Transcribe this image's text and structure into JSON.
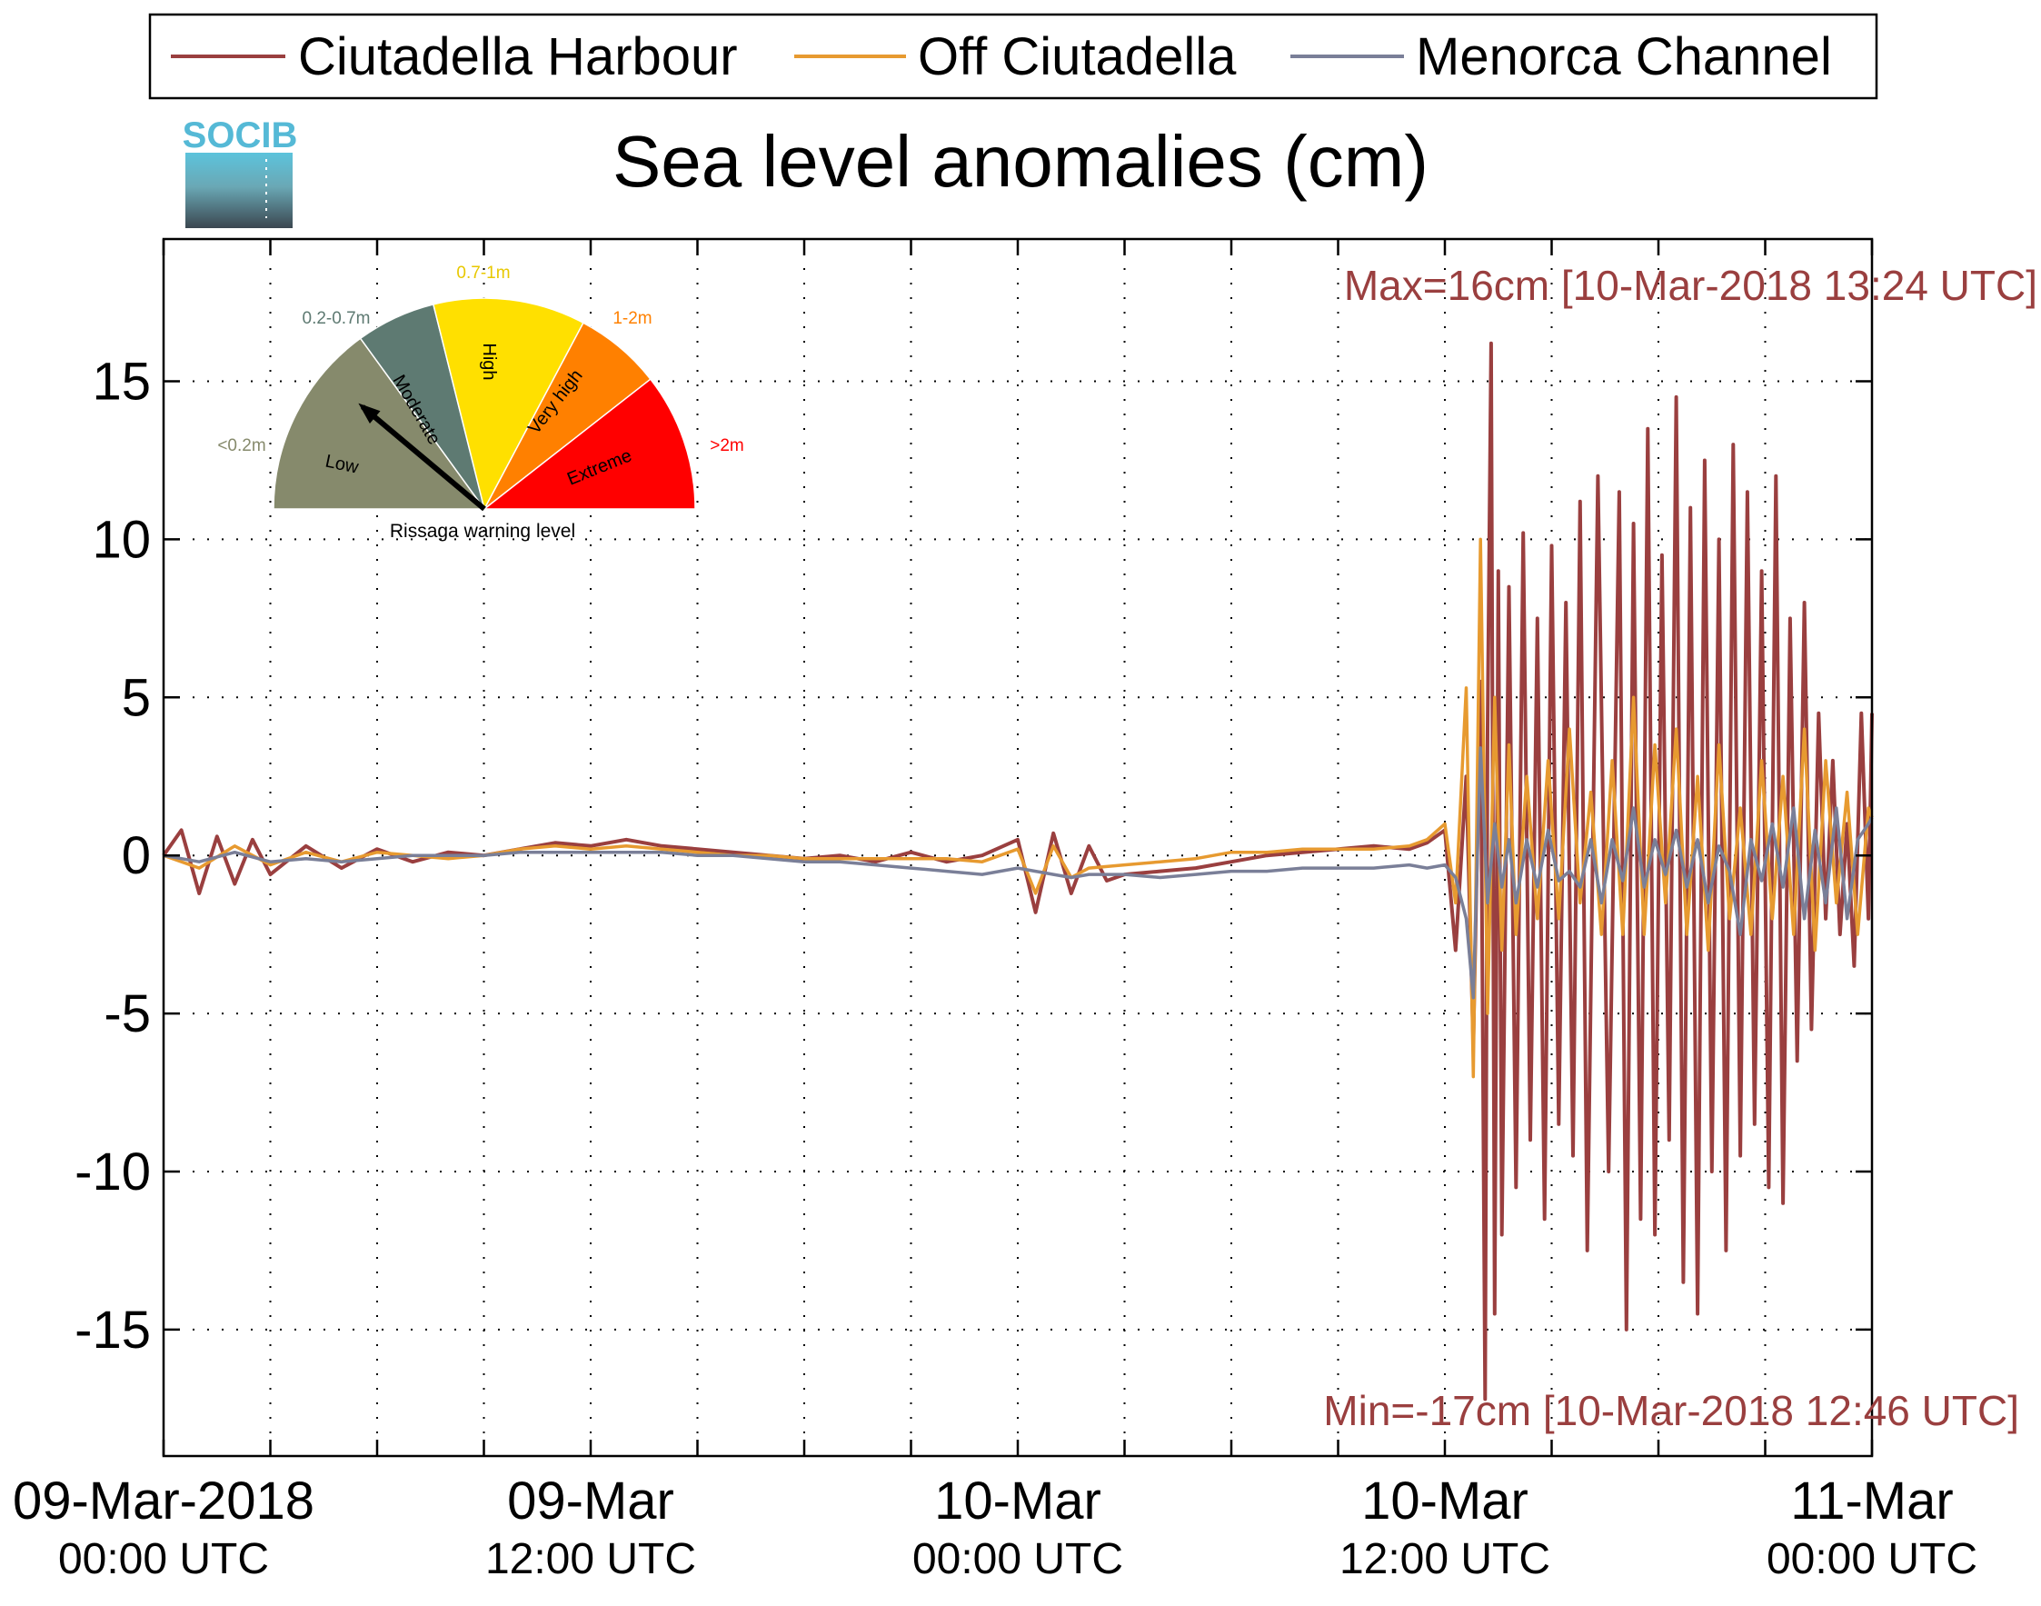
{
  "chart_data": {
    "type": "line",
    "title": "Sea level anomalies (cm)",
    "logo_text": "SOCIB",
    "xlabel": "",
    "ylabel": "",
    "xlim": [
      "2018-03-09 00:00 UTC",
      "2018-03-11 00:00 UTC"
    ],
    "ylim": [
      -19,
      19.5
    ],
    "y_ticks": [
      -15,
      -10,
      -5,
      0,
      5,
      10,
      15
    ],
    "y_tick_labels": [
      "-15",
      "-10",
      "-5",
      "0",
      "5",
      "10",
      "15"
    ],
    "x_ticks": [
      {
        "date": "09-Mar-2018",
        "time": "00:00 UTC",
        "hours": 0
      },
      {
        "date": "09-Mar",
        "time": "12:00 UTC",
        "hours": 12
      },
      {
        "date": "10-Mar",
        "time": "00:00 UTC",
        "hours": 24
      },
      {
        "date": "10-Mar",
        "time": "12:00 UTC",
        "hours": 36
      },
      {
        "date": "11-Mar",
        "time": "00:00 UTC",
        "hours": 48
      }
    ],
    "x_minor_tick_hours": [
      3,
      6,
      9,
      15,
      18,
      21,
      27,
      30,
      33,
      39,
      42,
      45
    ],
    "grid": true,
    "legend_position": "top",
    "annotations": {
      "max": "Max=16cm [10-Mar-2018 13:24 UTC]",
      "min": "Min=-17cm [10-Mar-2018 12:46 UTC]"
    },
    "series": [
      {
        "name": "Ciutadella Harbour",
        "color": "#9a3f3f",
        "x_hours": [
          0,
          0.5,
          1,
          1.5,
          2,
          2.5,
          3,
          4,
          5,
          6,
          7,
          8,
          9,
          10,
          11,
          12,
          13,
          14,
          15,
          16,
          17,
          18,
          19,
          20,
          21,
          22,
          23,
          24,
          24.5,
          25,
          25.5,
          26,
          26.5,
          27,
          28,
          29,
          30,
          31,
          32,
          33,
          34,
          35,
          35.5,
          36,
          36.3,
          36.6,
          36.8,
          37.0,
          37.13,
          37.2,
          37.3,
          37.4,
          37.5,
          37.6,
          37.8,
          38.0,
          38.2,
          38.4,
          38.6,
          38.8,
          39.0,
          39.2,
          39.4,
          39.6,
          39.8,
          40.0,
          40.3,
          40.6,
          40.9,
          41.1,
          41.3,
          41.5,
          41.7,
          41.9,
          42.1,
          42.3,
          42.5,
          42.7,
          42.9,
          43.1,
          43.3,
          43.5,
          43.7,
          43.9,
          44.1,
          44.3,
          44.5,
          44.7,
          44.9,
          45.1,
          45.3,
          45.5,
          45.7,
          45.9,
          46.1,
          46.3,
          46.5,
          46.7,
          46.9,
          47.1,
          47.3,
          47.5,
          47.7,
          47.9,
          48.0
        ],
        "values": [
          0,
          0.8,
          -1.2,
          0.6,
          -0.9,
          0.5,
          -0.6,
          0.3,
          -0.4,
          0.2,
          -0.2,
          0.1,
          0,
          0.2,
          0.4,
          0.3,
          0.5,
          0.3,
          0.2,
          0.1,
          0,
          -0.1,
          0,
          -0.2,
          0.1,
          -0.2,
          0,
          0.5,
          -1.8,
          0.7,
          -1.2,
          0.3,
          -0.8,
          -0.6,
          -0.5,
          -0.4,
          -0.2,
          0,
          0.1,
          0.2,
          0.3,
          0.2,
          0.4,
          0.8,
          -3.0,
          2.5,
          -6.0,
          5.5,
          -17.2,
          4.0,
          16.2,
          -14.5,
          9.0,
          -12.0,
          8.5,
          -10.5,
          10.2,
          -9.0,
          7.5,
          -11.5,
          9.8,
          -8.5,
          8.0,
          -9.5,
          11.2,
          -12.5,
          12.0,
          -10.0,
          11.5,
          -15.0,
          10.5,
          -11.5,
          13.5,
          -12.0,
          9.5,
          -9.0,
          14.5,
          -13.5,
          11.0,
          -14.5,
          12.5,
          -10.0,
          10.0,
          -12.5,
          13.0,
          -9.5,
          11.5,
          -8.5,
          9.0,
          -10.5,
          12.0,
          -11.0,
          7.5,
          -6.5,
          8.0,
          -5.5,
          4.5,
          -2.0,
          3.0,
          -2.5,
          1.0,
          -3.5,
          4.5,
          -2.0,
          4.5
        ]
      },
      {
        "name": "Off Ciutadella",
        "color": "#e79a30",
        "x_hours": [
          0,
          1,
          2,
          3,
          4,
          5,
          6,
          7,
          8,
          9,
          10,
          11,
          12,
          13,
          14,
          15,
          16,
          17,
          18,
          19,
          20,
          21,
          22,
          23,
          24,
          24.5,
          25,
          25.5,
          26,
          27,
          28,
          29,
          30,
          31,
          32,
          33,
          34,
          35,
          35.5,
          36,
          36.3,
          36.6,
          36.8,
          37.0,
          37.2,
          37.4,
          37.6,
          37.8,
          38.0,
          38.3,
          38.6,
          38.9,
          39.2,
          39.5,
          39.8,
          40.1,
          40.4,
          40.7,
          41.0,
          41.3,
          41.6,
          41.9,
          42.2,
          42.5,
          42.8,
          43.1,
          43.4,
          43.7,
          44.0,
          44.3,
          44.6,
          44.9,
          45.2,
          45.5,
          45.8,
          46.1,
          46.4,
          46.7,
          47.0,
          47.3,
          47.6,
          47.9,
          48.0
        ],
        "values": [
          0,
          -0.4,
          0.3,
          -0.3,
          0.1,
          -0.2,
          0.1,
          0,
          -0.1,
          0,
          0.2,
          0.3,
          0.2,
          0.3,
          0.2,
          0.1,
          0,
          0,
          -0.1,
          -0.1,
          -0.1,
          -0.1,
          -0.1,
          -0.2,
          0.2,
          -1.2,
          0.3,
          -0.7,
          -0.4,
          -0.3,
          -0.2,
          -0.1,
          0.1,
          0.1,
          0.2,
          0.2,
          0.2,
          0.3,
          0.5,
          1.0,
          -1.5,
          5.3,
          -7.0,
          10.0,
          -5.0,
          5.0,
          -3.0,
          3.5,
          -2.5,
          2.5,
          -2.0,
          3.0,
          -2.0,
          4.0,
          -1.5,
          2.0,
          -2.5,
          3.0,
          -2.5,
          5.0,
          -2.5,
          3.5,
          -1.5,
          4.0,
          -2.5,
          2.5,
          -3.0,
          3.5,
          -2.0,
          1.5,
          -2.5,
          3.0,
          -2.0,
          2.5,
          -2.5,
          4.0,
          -3.0,
          3.0,
          -1.5,
          2.0,
          -2.5,
          1.5,
          1.2
        ]
      },
      {
        "name": "Menorca Channel",
        "color": "#7a7f98",
        "x_hours": [
          0,
          1,
          2,
          3,
          4,
          5,
          6,
          7,
          8,
          9,
          10,
          11,
          12,
          13,
          14,
          15,
          16,
          17,
          18,
          19,
          20,
          21,
          22,
          23,
          24,
          24.5,
          25,
          25.5,
          26,
          27,
          28,
          29,
          30,
          31,
          32,
          33,
          34,
          35,
          35.5,
          36,
          36.3,
          36.6,
          36.8,
          37.0,
          37.2,
          37.4,
          37.6,
          37.8,
          38.0,
          38.3,
          38.6,
          38.9,
          39.2,
          39.5,
          39.8,
          40.1,
          40.4,
          40.7,
          41.0,
          41.3,
          41.6,
          41.9,
          42.2,
          42.5,
          42.8,
          43.1,
          43.4,
          43.7,
          44.0,
          44.3,
          44.6,
          44.9,
          45.2,
          45.5,
          45.8,
          46.1,
          46.4,
          46.7,
          47.0,
          47.3,
          47.6,
          47.9,
          48.0
        ],
        "values": [
          0,
          -0.2,
          0.1,
          -0.2,
          -0.1,
          -0.2,
          -0.1,
          0,
          0,
          0,
          0.1,
          0.1,
          0.1,
          0.1,
          0.1,
          0,
          0,
          -0.1,
          -0.2,
          -0.2,
          -0.3,
          -0.4,
          -0.5,
          -0.6,
          -0.4,
          -0.5,
          -0.6,
          -0.7,
          -0.6,
          -0.6,
          -0.7,
          -0.6,
          -0.5,
          -0.5,
          -0.4,
          -0.4,
          -0.4,
          -0.3,
          -0.4,
          -0.3,
          -0.7,
          -2.0,
          -4.5,
          3.4,
          -1.5,
          1.0,
          -1.0,
          0.5,
          -1.5,
          0.5,
          -1.0,
          0.8,
          -0.8,
          -0.5,
          -1.0,
          0.5,
          -1.5,
          0.5,
          -0.8,
          1.5,
          -1.0,
          0.5,
          -0.6,
          0.8,
          -1.0,
          0.5,
          -1.5,
          0.3,
          -0.5,
          -2.5,
          0.5,
          -0.8,
          1.0,
          -1.0,
          1.5,
          -2.0,
          0.8,
          -1.5,
          1.5,
          -2.0,
          0.5,
          1.0,
          1.2
        ]
      }
    ]
  },
  "gauge": {
    "caption": "Rissaga warning level",
    "needle_level": "Moderate",
    "segments": [
      {
        "label": "Low",
        "range": "<0.2m",
        "color": "#868a6c"
      },
      {
        "label": "Moderate",
        "range": "0.2-0.7m",
        "color": "#5e7a72"
      },
      {
        "label": "High",
        "range": "0.7-1m",
        "color": "#ffe000"
      },
      {
        "label": "Very high",
        "range": "1-2m",
        "color": "#ff8000"
      },
      {
        "label": "Extreme",
        "range": ">2m",
        "color": "#ff0000"
      }
    ]
  }
}
